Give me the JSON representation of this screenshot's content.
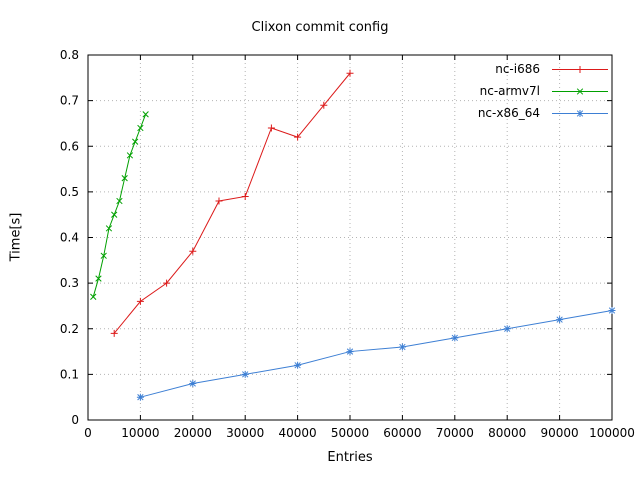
{
  "chart_data": {
    "type": "line",
    "title": "Clixon commit config",
    "xlabel": "Entries",
    "ylabel": "Time[s]",
    "xlim": [
      0,
      100000
    ],
    "ylim": [
      0,
      0.8
    ],
    "xticks": [
      0,
      10000,
      20000,
      30000,
      40000,
      50000,
      60000,
      70000,
      80000,
      90000,
      100000
    ],
    "xtick_labels": [
      "0",
      "10000",
      "20000",
      "30000",
      "40000",
      "50000",
      "60000",
      "70000",
      "80000",
      "90000",
      "100000"
    ],
    "yticks": [
      0,
      0.1,
      0.2,
      0.3,
      0.4,
      0.5,
      0.6,
      0.7,
      0.8
    ],
    "ytick_labels": [
      "0",
      "0.1",
      "0.2",
      "0.3",
      "0.4",
      "0.5",
      "0.6",
      "0.7",
      "0.8"
    ],
    "grid": true,
    "legend_position": "top-right-inside",
    "series": [
      {
        "name": "nc-i686",
        "color": "#dc1a1a",
        "marker": "plus",
        "x": [
          5000,
          10000,
          15000,
          20000,
          25000,
          30000,
          35000,
          40000,
          45000,
          50000
        ],
        "y": [
          0.19,
          0.26,
          0.3,
          0.37,
          0.48,
          0.49,
          0.64,
          0.62,
          0.69,
          0.76
        ]
      },
      {
        "name": "nc-armv7l",
        "color": "#00a000",
        "marker": "cross",
        "x": [
          1000,
          2000,
          3000,
          4000,
          5000,
          6000,
          7000,
          8000,
          9000,
          10000,
          11000
        ],
        "y": [
          0.27,
          0.31,
          0.36,
          0.42,
          0.45,
          0.48,
          0.53,
          0.58,
          0.61,
          0.64,
          0.67
        ]
      },
      {
        "name": "nc-x86_64",
        "color": "#3d7fd4",
        "marker": "star",
        "x": [
          10000,
          20000,
          30000,
          40000,
          50000,
          60000,
          70000,
          80000,
          90000,
          100000
        ],
        "y": [
          0.05,
          0.08,
          0.1,
          0.12,
          0.15,
          0.16,
          0.18,
          0.2,
          0.22,
          0.24
        ]
      }
    ]
  },
  "colors": {
    "background": "#ffffff",
    "grid": "#b4b4b4",
    "axis": "#000000",
    "text": "#000000"
  }
}
